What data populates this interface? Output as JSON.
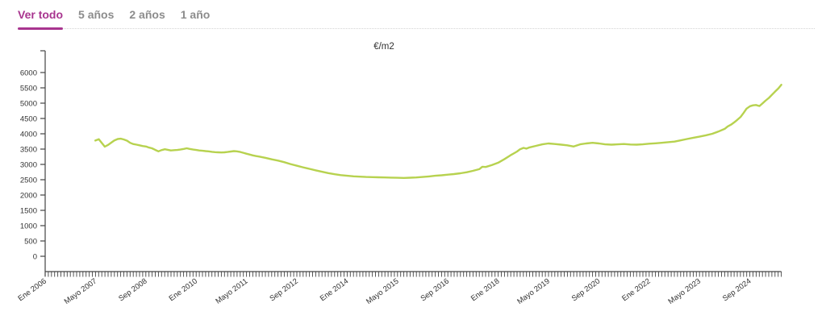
{
  "tabs": {
    "items": [
      {
        "label": "Ver todo",
        "active": true
      },
      {
        "label": "5 años",
        "active": false
      },
      {
        "label": "2 años",
        "active": false
      },
      {
        "label": "1 año",
        "active": false
      }
    ]
  },
  "colors": {
    "accent": "#a8358f",
    "line": "#b7d24f",
    "tab_inactive": "#8c8c8c",
    "axis": "#444444",
    "rule": "#d4d4d4"
  },
  "chart_data": {
    "type": "line",
    "title": "€/m2",
    "ylabel": "€/m2",
    "ylim": [
      0,
      6000
    ],
    "ytick_step": 500,
    "grid": false,
    "legend": null,
    "x_unit": "months since Ene 2006",
    "x_total_months": 234,
    "x_label_every_months": 16,
    "x_tick_labels": [
      "Ene 2006",
      "Mayo 2007",
      "Sep 2008",
      "Ene 2010",
      "Mayo 2011",
      "Sep 2012",
      "Ene 2014",
      "Mayo 2015",
      "Sep 2016",
      "Ene 2018",
      "Mayo 2019",
      "Sep 2020",
      "Ene 2022",
      "Mayo 2023",
      "Sep 2024"
    ],
    "series": [
      {
        "name": "€/m2",
        "color": "#b7d24f",
        "points": [
          [
            2007.33,
            3780
          ],
          [
            2007.42,
            3825
          ],
          [
            2007.5,
            3700
          ],
          [
            2007.58,
            3580
          ],
          [
            2007.67,
            3640
          ],
          [
            2007.75,
            3710
          ],
          [
            2007.83,
            3780
          ],
          [
            2007.92,
            3830
          ],
          [
            2008.0,
            3840
          ],
          [
            2008.08,
            3815
          ],
          [
            2008.17,
            3775
          ],
          [
            2008.25,
            3705
          ],
          [
            2008.33,
            3665
          ],
          [
            2008.42,
            3645
          ],
          [
            2008.5,
            3625
          ],
          [
            2008.58,
            3600
          ],
          [
            2008.67,
            3585
          ],
          [
            2008.75,
            3550
          ],
          [
            2008.83,
            3525
          ],
          [
            2008.92,
            3470
          ],
          [
            2009.0,
            3425
          ],
          [
            2009.08,
            3465
          ],
          [
            2009.17,
            3495
          ],
          [
            2009.25,
            3475
          ],
          [
            2009.33,
            3455
          ],
          [
            2009.42,
            3465
          ],
          [
            2009.5,
            3470
          ],
          [
            2009.58,
            3485
          ],
          [
            2009.67,
            3505
          ],
          [
            2009.75,
            3525
          ],
          [
            2009.83,
            3505
          ],
          [
            2009.92,
            3485
          ],
          [
            2010.0,
            3470
          ],
          [
            2010.08,
            3455
          ],
          [
            2010.17,
            3445
          ],
          [
            2010.25,
            3435
          ],
          [
            2010.33,
            3425
          ],
          [
            2010.42,
            3410
          ],
          [
            2010.5,
            3400
          ],
          [
            2010.58,
            3395
          ],
          [
            2010.67,
            3390
          ],
          [
            2010.75,
            3395
          ],
          [
            2010.83,
            3405
          ],
          [
            2010.92,
            3420
          ],
          [
            2011.0,
            3435
          ],
          [
            2011.08,
            3425
          ],
          [
            2011.17,
            3405
          ],
          [
            2011.25,
            3380
          ],
          [
            2011.33,
            3350
          ],
          [
            2011.42,
            3320
          ],
          [
            2011.5,
            3295
          ],
          [
            2011.58,
            3275
          ],
          [
            2011.67,
            3255
          ],
          [
            2011.75,
            3235
          ],
          [
            2011.83,
            3215
          ],
          [
            2011.92,
            3190
          ],
          [
            2012.0,
            3165
          ],
          [
            2012.17,
            3125
          ],
          [
            2012.33,
            3075
          ],
          [
            2012.5,
            3010
          ],
          [
            2012.67,
            2955
          ],
          [
            2012.83,
            2905
          ],
          [
            2013.0,
            2855
          ],
          [
            2013.17,
            2805
          ],
          [
            2013.33,
            2760
          ],
          [
            2013.5,
            2715
          ],
          [
            2013.67,
            2680
          ],
          [
            2013.83,
            2650
          ],
          [
            2014.0,
            2630
          ],
          [
            2014.17,
            2610
          ],
          [
            2014.33,
            2600
          ],
          [
            2014.5,
            2590
          ],
          [
            2014.67,
            2585
          ],
          [
            2014.83,
            2580
          ],
          [
            2015.0,
            2575
          ],
          [
            2015.17,
            2568
          ],
          [
            2015.33,
            2562
          ],
          [
            2015.5,
            2558
          ],
          [
            2015.67,
            2565
          ],
          [
            2015.83,
            2575
          ],
          [
            2016.0,
            2590
          ],
          [
            2016.17,
            2608
          ],
          [
            2016.33,
            2628
          ],
          [
            2016.5,
            2645
          ],
          [
            2016.67,
            2665
          ],
          [
            2016.83,
            2685
          ],
          [
            2017.0,
            2710
          ],
          [
            2017.17,
            2745
          ],
          [
            2017.33,
            2790
          ],
          [
            2017.5,
            2845
          ],
          [
            2017.58,
            2925
          ],
          [
            2017.67,
            2915
          ],
          [
            2017.83,
            2975
          ],
          [
            2018.0,
            3055
          ],
          [
            2018.17,
            3175
          ],
          [
            2018.33,
            3300
          ],
          [
            2018.5,
            3420
          ],
          [
            2018.58,
            3495
          ],
          [
            2018.67,
            3540
          ],
          [
            2018.75,
            3515
          ],
          [
            2018.83,
            3555
          ],
          [
            2019.0,
            3605
          ],
          [
            2019.17,
            3655
          ],
          [
            2019.33,
            3685
          ],
          [
            2019.5,
            3665
          ],
          [
            2019.67,
            3645
          ],
          [
            2019.83,
            3625
          ],
          [
            2020.0,
            3585
          ],
          [
            2020.17,
            3655
          ],
          [
            2020.33,
            3685
          ],
          [
            2020.5,
            3705
          ],
          [
            2020.67,
            3685
          ],
          [
            2020.83,
            3655
          ],
          [
            2021.0,
            3645
          ],
          [
            2021.17,
            3655
          ],
          [
            2021.33,
            3665
          ],
          [
            2021.5,
            3650
          ],
          [
            2021.67,
            3645
          ],
          [
            2021.83,
            3655
          ],
          [
            2022.0,
            3675
          ],
          [
            2022.17,
            3690
          ],
          [
            2022.33,
            3705
          ],
          [
            2022.5,
            3725
          ],
          [
            2022.67,
            3745
          ],
          [
            2022.83,
            3785
          ],
          [
            2023.0,
            3830
          ],
          [
            2023.17,
            3870
          ],
          [
            2023.33,
            3905
          ],
          [
            2023.5,
            3950
          ],
          [
            2023.67,
            4000
          ],
          [
            2023.83,
            4070
          ],
          [
            2024.0,
            4160
          ],
          [
            2024.08,
            4240
          ],
          [
            2024.17,
            4300
          ],
          [
            2024.25,
            4370
          ],
          [
            2024.33,
            4450
          ],
          [
            2024.42,
            4550
          ],
          [
            2024.5,
            4680
          ],
          [
            2024.58,
            4820
          ],
          [
            2024.67,
            4900
          ],
          [
            2024.75,
            4930
          ],
          [
            2024.83,
            4940
          ],
          [
            2024.92,
            4905
          ],
          [
            2025.0,
            4990
          ],
          [
            2025.08,
            5080
          ],
          [
            2025.17,
            5170
          ],
          [
            2025.25,
            5270
          ],
          [
            2025.33,
            5370
          ],
          [
            2025.42,
            5480
          ],
          [
            2025.5,
            5600
          ]
        ]
      }
    ]
  }
}
